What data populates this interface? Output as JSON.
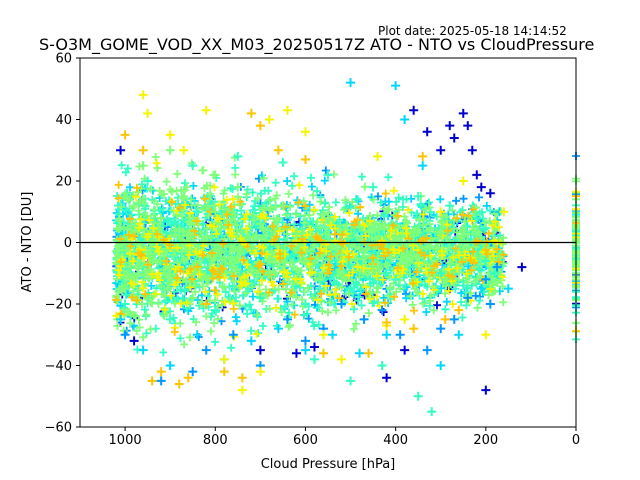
{
  "plot_date": "Plot date: 2025-05-18 14:14:52",
  "chart_data": {
    "type": "scatter",
    "title": "S-O3M_GOME_VOD_XX_M03_20250517Z ATO - NTO vs CloudPressure",
    "xlabel": "Cloud Pressure [hPa]",
    "ylabel": "ATO - NTO [DU]",
    "xlim": [
      1100,
      0
    ],
    "ylim": [
      -60,
      60
    ],
    "x_ticks": [
      1000,
      800,
      600,
      400,
      200,
      0
    ],
    "y_ticks": [
      -60,
      -40,
      -20,
      0,
      20,
      40,
      60
    ],
    "reference_line": {
      "y": 0,
      "color": "#000000"
    },
    "marker": "+",
    "colors": [
      "#0000cd",
      "#0096ff",
      "#00d7ff",
      "#33ffc4",
      "#7fff7a",
      "#f5f500",
      "#ffc400"
    ],
    "series": [
      {
        "color": "#7fff7a",
        "points": [
          [
            1010,
            5
          ],
          [
            980,
            12
          ],
          [
            950,
            -3
          ],
          [
            920,
            8
          ],
          [
            900,
            -8
          ],
          [
            870,
            15
          ],
          [
            850,
            2
          ],
          [
            820,
            -12
          ],
          [
            800,
            10
          ],
          [
            780,
            -5
          ],
          [
            750,
            18
          ],
          [
            720,
            -2
          ],
          [
            700,
            6
          ],
          [
            680,
            -10
          ],
          [
            650,
            12
          ],
          [
            620,
            3
          ],
          [
            600,
            -6
          ],
          [
            560,
            9
          ],
          [
            520,
            -4
          ],
          [
            480,
            5
          ],
          [
            450,
            -8
          ],
          [
            400,
            2
          ],
          [
            350,
            -5
          ],
          [
            300,
            3
          ],
          [
            250,
            -2
          ],
          [
            1000,
            -15
          ],
          [
            960,
            25
          ],
          [
            900,
            30
          ],
          [
            850,
            -18
          ],
          [
            800,
            22
          ]
        ]
      },
      {
        "color": "#33ffc4",
        "points": [
          [
            1000,
            -20
          ],
          [
            950,
            20
          ],
          [
            900,
            -25
          ],
          [
            850,
            25
          ],
          [
            800,
            -22
          ],
          [
            750,
            28
          ],
          [
            700,
            -18
          ],
          [
            650,
            26
          ],
          [
            600,
            -20
          ],
          [
            550,
            22
          ],
          [
            500,
            -15
          ],
          [
            450,
            18
          ],
          [
            400,
            -12
          ],
          [
            350,
            15
          ],
          [
            300,
            -10
          ],
          [
            280,
            12
          ],
          [
            250,
            -14
          ],
          [
            220,
            8
          ],
          [
            200,
            -6
          ],
          [
            180,
            -10
          ],
          [
            580,
            -38
          ],
          [
            500,
            -45
          ],
          [
            430,
            -40
          ],
          [
            350,
            -50
          ],
          [
            320,
            -55
          ]
        ]
      },
      {
        "color": "#00d7ff",
        "points": [
          [
            1010,
            -25
          ],
          [
            960,
            -35
          ],
          [
            900,
            -40
          ],
          [
            840,
            -30
          ],
          [
            780,
            -38
          ],
          [
            720,
            -32
          ],
          [
            660,
            -28
          ],
          [
            600,
            -35
          ],
          [
            540,
            -30
          ],
          [
            500,
            52
          ],
          [
            480,
            -36
          ],
          [
            420,
            -30
          ],
          [
            400,
            51
          ],
          [
            380,
            40
          ],
          [
            340,
            25
          ],
          [
            300,
            -40
          ],
          [
            260,
            -30
          ],
          [
            210,
            -15
          ],
          [
            170,
            10
          ],
          [
            150,
            -15
          ]
        ]
      },
      {
        "color": "#0096ff",
        "points": [
          [
            1000,
            -30
          ],
          [
            920,
            -45
          ],
          [
            850,
            -42
          ],
          [
            820,
            -35
          ],
          [
            760,
            -30
          ],
          [
            700,
            -40
          ],
          [
            640,
            -25
          ],
          [
            600,
            -32
          ],
          [
            560,
            -28
          ],
          [
            520,
            -20
          ],
          [
            470,
            -25
          ],
          [
            430,
            -22
          ],
          [
            390,
            -30
          ],
          [
            330,
            -35
          ],
          [
            300,
            -28
          ],
          [
            270,
            -25
          ],
          [
            240,
            -18
          ],
          [
            200,
            -12
          ],
          [
            190,
            -20
          ],
          [
            175,
            -8
          ]
        ]
      },
      {
        "color": "#0000cd",
        "points": [
          [
            1010,
            30
          ],
          [
            980,
            -32
          ],
          [
            700,
            -35
          ],
          [
            620,
            -36
          ],
          [
            580,
            -34
          ],
          [
            420,
            -44
          ],
          [
            380,
            -35
          ],
          [
            360,
            43
          ],
          [
            330,
            36
          ],
          [
            300,
            30
          ],
          [
            280,
            38
          ],
          [
            270,
            34
          ],
          [
            250,
            42
          ],
          [
            240,
            38
          ],
          [
            230,
            30
          ],
          [
            220,
            22
          ],
          [
            210,
            18
          ],
          [
            200,
            -48
          ],
          [
            190,
            16
          ],
          [
            120,
            -8
          ]
        ]
      },
      {
        "color": "#f5f500",
        "points": [
          [
            960,
            48
          ],
          [
            950,
            42
          ],
          [
            900,
            35
          ],
          [
            870,
            30
          ],
          [
            820,
            43
          ],
          [
            780,
            -38
          ],
          [
            740,
            -48
          ],
          [
            700,
            -42
          ],
          [
            680,
            40
          ],
          [
            640,
            43
          ],
          [
            600,
            36
          ],
          [
            560,
            -30
          ],
          [
            520,
            -38
          ],
          [
            440,
            28
          ],
          [
            420,
            -27
          ],
          [
            380,
            -25
          ],
          [
            300,
            10
          ],
          [
            250,
            20
          ],
          [
            200,
            -30
          ],
          [
            160,
            10
          ]
        ]
      },
      {
        "color": "#ffc400",
        "points": [
          [
            1000,
            35
          ],
          [
            960,
            30
          ],
          [
            940,
            -45
          ],
          [
            920,
            -42
          ],
          [
            880,
            -46
          ],
          [
            860,
            -44
          ],
          [
            820,
            -20
          ],
          [
            780,
            -42
          ],
          [
            740,
            -44
          ],
          [
            720,
            42
          ],
          [
            700,
            38
          ],
          [
            660,
            30
          ],
          [
            600,
            27
          ],
          [
            560,
            -36
          ],
          [
            460,
            -36
          ],
          [
            420,
            -26
          ],
          [
            360,
            -28
          ],
          [
            340,
            28
          ],
          [
            290,
            -25
          ],
          [
            260,
            -22
          ]
        ]
      }
    ]
  }
}
